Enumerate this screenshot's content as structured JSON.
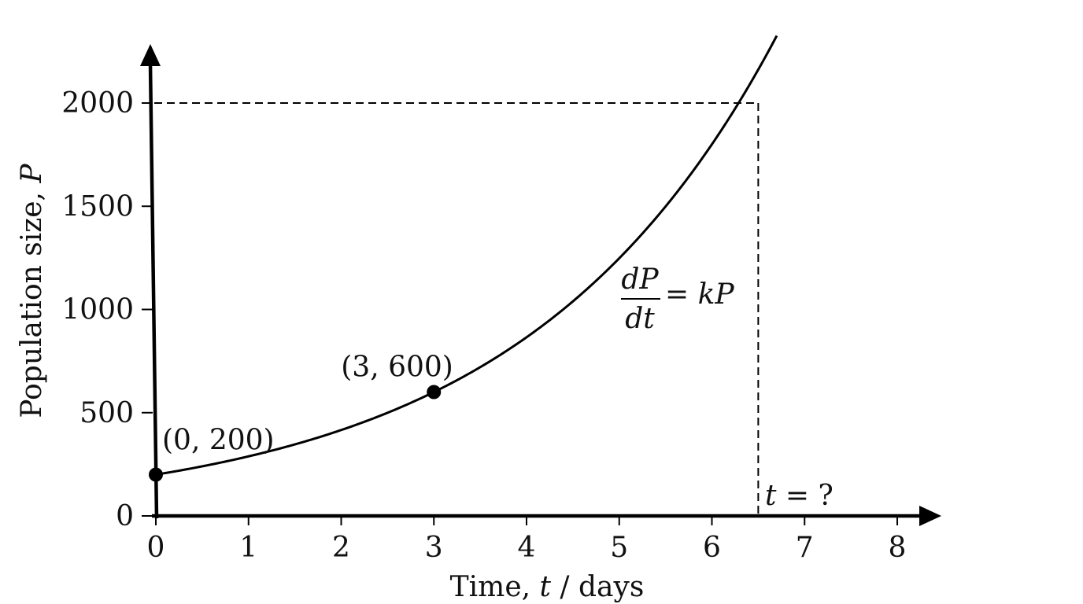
{
  "chart_data": {
    "type": "line",
    "title": "",
    "xlabel": {
      "prefix": "Time, ",
      "var": "t",
      "suffix": " / days"
    },
    "ylabel": {
      "prefix": "Population size, ",
      "var": "P"
    },
    "xlim": [
      0,
      8
    ],
    "ylim": [
      0,
      2000
    ],
    "xticks": [
      0,
      1,
      2,
      3,
      4,
      5,
      6,
      7,
      8
    ],
    "yticks": [
      0,
      500,
      1000,
      1500,
      2000
    ],
    "grid": false,
    "series": [
      {
        "model": "P = 200 * 3^(t/3)",
        "t_start": 0,
        "t_end": 6.7
      }
    ],
    "points": [
      {
        "x": 0,
        "y": 200,
        "label": "(0, 200)"
      },
      {
        "x": 3,
        "y": 600,
        "label": "(3, 600)"
      }
    ],
    "target": {
      "y": 2000,
      "x": 6.5,
      "x_label_var": "t",
      "x_label_rest": " = ?"
    },
    "equation": {
      "num": "dP",
      "den": "dt",
      "rhs": "= kP"
    },
    "color": "#000000"
  }
}
